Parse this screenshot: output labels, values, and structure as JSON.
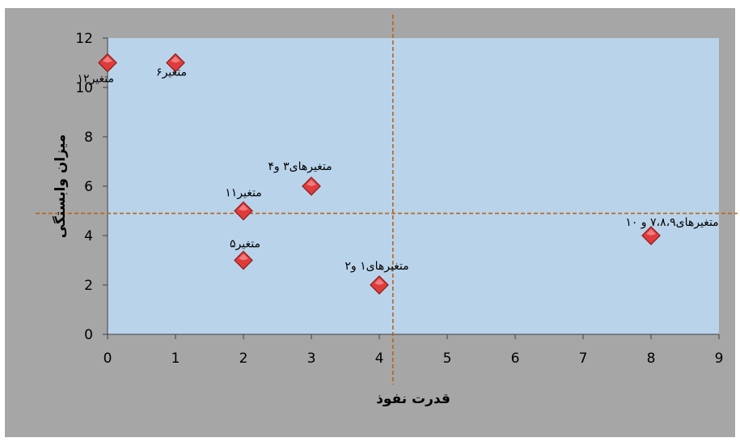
{
  "chart_data": {
    "type": "scatter",
    "title": "",
    "xlabel": "قدرت نفوذ",
    "ylabel": "میزان وابستگی",
    "xlim": [
      0,
      9
    ],
    "ylim": [
      0,
      12
    ],
    "x_ticks": [
      "0",
      "1",
      "2",
      "3",
      "4",
      "5",
      "6",
      "7",
      "8",
      "9"
    ],
    "y_ticks": [
      "0",
      "2",
      "4",
      "6",
      "8",
      "10",
      "12"
    ],
    "grid": false,
    "reference_lines": {
      "x": 4.2,
      "y": 4.9
    },
    "colors": {
      "outer_background": "#a6a6a6",
      "plot_background": "#b9d3ea",
      "marker_fill": "#e03b3b",
      "marker_stroke": "#8b1a1a",
      "reference_line": "#b8651a"
    },
    "points": [
      {
        "x": 0,
        "y": 11,
        "label": "متغیر۱۲"
      },
      {
        "x": 1,
        "y": 11,
        "label": "متغیر۶"
      },
      {
        "x": 2,
        "y": 5,
        "label": "متغیر۱۱"
      },
      {
        "x": 2,
        "y": 3,
        "label": "متغیر۵"
      },
      {
        "x": 3,
        "y": 6,
        "label": "متغیرهای۳ و۴"
      },
      {
        "x": 4,
        "y": 2,
        "label": "متغیرهای۱ و۲"
      },
      {
        "x": 8,
        "y": 4,
        "label": "متغیرهای۷،۸،۹ و ۱۰"
      }
    ]
  }
}
